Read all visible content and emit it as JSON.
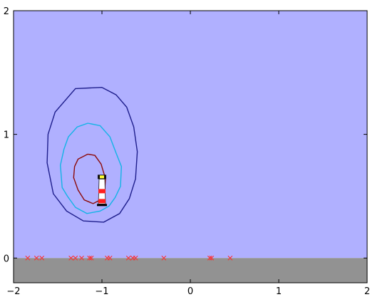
{
  "chart_data": {
    "type": "contour",
    "xlim": [
      -2,
      2
    ],
    "ylim": [
      -0.2,
      2
    ],
    "grid": false,
    "legend": "none",
    "x_ticks": [
      {
        "value": -2,
        "label": "−2"
      },
      {
        "value": -1,
        "label": "−1"
      },
      {
        "value": 0,
        "label": "0"
      },
      {
        "value": 1,
        "label": "1"
      },
      {
        "value": 2,
        "label": "2"
      }
    ],
    "y_ticks": [
      {
        "value": 0,
        "label": "0"
      },
      {
        "value": 1,
        "label": "1"
      },
      {
        "value": 2,
        "label": "2"
      }
    ],
    "colors": {
      "sky": "#b0b0ff",
      "ground": "#929292",
      "outer_contour": "#1e1e8c",
      "middle_contour": "#12b4e6",
      "inner_contour": "#8c0a0a",
      "markers": "#ff2a2a"
    },
    "ground_level": 0,
    "contours": [
      {
        "level": "outer",
        "points": [
          [
            -1.0,
            1.38
          ],
          [
            -0.84,
            1.32
          ],
          [
            -0.72,
            1.22
          ],
          [
            -0.64,
            1.06
          ],
          [
            -0.6,
            0.86
          ],
          [
            -0.62,
            0.64
          ],
          [
            -0.69,
            0.48
          ],
          [
            -0.8,
            0.36
          ],
          [
            -0.98,
            0.29
          ],
          [
            -1.21,
            0.3
          ],
          [
            -1.4,
            0.38
          ],
          [
            -1.55,
            0.52
          ],
          [
            -1.62,
            0.77
          ],
          [
            -1.61,
            1.0
          ],
          [
            -1.53,
            1.18
          ],
          [
            -1.3,
            1.37
          ],
          [
            -1.0,
            1.38
          ]
        ]
      },
      {
        "level": "middle",
        "points": [
          [
            -1.16,
            1.09
          ],
          [
            -1.02,
            1.07
          ],
          [
            -0.91,
            0.98
          ],
          [
            -0.84,
            0.85
          ],
          [
            -0.78,
            0.74
          ],
          [
            -0.79,
            0.58
          ],
          [
            -0.85,
            0.49
          ],
          [
            -0.92,
            0.42
          ],
          [
            -1.02,
            0.38
          ],
          [
            -1.17,
            0.36
          ],
          [
            -1.3,
            0.41
          ],
          [
            -1.39,
            0.5
          ],
          [
            -1.45,
            0.57
          ],
          [
            -1.47,
            0.75
          ],
          [
            -1.43,
            0.88
          ],
          [
            -1.38,
            0.98
          ],
          [
            -1.28,
            1.06
          ],
          [
            -1.16,
            1.09
          ]
        ]
      },
      {
        "level": "inner",
        "points": [
          [
            -1.16,
            0.84
          ],
          [
            -1.08,
            0.83
          ],
          [
            -1.01,
            0.76
          ],
          [
            -0.96,
            0.64
          ],
          [
            -0.97,
            0.54
          ],
          [
            -1.02,
            0.47
          ],
          [
            -1.1,
            0.44
          ],
          [
            -1.2,
            0.47
          ],
          [
            -1.27,
            0.55
          ],
          [
            -1.32,
            0.65
          ],
          [
            -1.31,
            0.74
          ],
          [
            -1.27,
            0.8
          ],
          [
            -1.16,
            0.84
          ]
        ]
      }
    ],
    "lighthouse_position": [
      -1.0,
      0.42
    ],
    "marker_points_x": [
      -1.84,
      -1.74,
      -1.68,
      -1.35,
      -1.3,
      -1.23,
      -1.14,
      -1.12,
      -0.94,
      -0.91,
      -0.7,
      -0.65,
      -0.62,
      -0.3,
      0.22,
      0.24,
      0.45
    ]
  }
}
